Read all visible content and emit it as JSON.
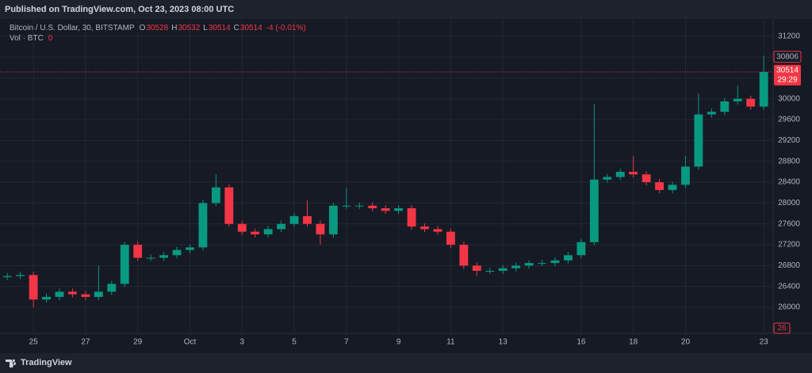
{
  "header": {
    "published": "Published on TradingView.com, Oct 23, 2023 08:00 UTC"
  },
  "footer": {
    "brand": "TradingView"
  },
  "chart_data": {
    "type": "candlestick",
    "title": "Bitcoin / U.S. Dollar, 30, BITSTAMP",
    "ohlc": [
      {
        "label": "O",
        "value": 30528
      },
      {
        "label": "H",
        "value": 30532
      },
      {
        "label": "L",
        "value": 30514
      },
      {
        "label": "C",
        "value": 30514
      }
    ],
    "change": "-4 (-0.01%)",
    "volume_label": "Vol · BTC",
    "volume_value": 0,
    "volume_last": 26,
    "last_price": 30514,
    "countdown": "29:29",
    "high_marker": 30806,
    "up_color": "#089981",
    "down_color": "#f23645",
    "grid": true,
    "x": [
      -1,
      -0.5,
      0,
      0.5,
      1,
      1.5,
      2,
      2.5,
      3,
      3.5,
      4,
      4.5,
      5,
      5.5,
      6,
      6.5,
      7,
      7.5,
      8,
      8.5,
      9,
      9.5,
      10,
      10.5,
      11,
      11.5,
      12,
      12.5,
      13,
      13.5,
      14,
      14.5,
      15,
      15.5,
      16,
      16.5,
      17,
      17.5,
      18,
      18.5,
      19,
      19.5,
      20,
      20.5,
      21,
      21.5,
      22,
      22.5,
      23,
      23.5,
      24,
      24.5,
      25,
      25.5,
      26,
      26.5,
      27,
      27.5,
      28
    ],
    "open": [
      26580,
      26600,
      26620,
      26150,
      26200,
      26300,
      26250,
      26200,
      26300,
      26450,
      27200,
      26950,
      26950,
      27000,
      27100,
      27150,
      28000,
      28300,
      27600,
      27450,
      27400,
      27500,
      27600,
      27750,
      27600,
      27400,
      27950,
      27950,
      27950,
      27900,
      27850,
      27900,
      27550,
      27500,
      27450,
      27200,
      26800,
      26700,
      26700,
      26750,
      26800,
      26850,
      26850,
      26900,
      27000,
      27250,
      28450,
      28500,
      28600,
      28550,
      28400,
      28250,
      28350,
      28700,
      29700,
      29750,
      29950,
      30000,
      29850
    ],
    "high": [
      26660,
      26680,
      26680,
      26260,
      26360,
      26360,
      26310,
      26800,
      26510,
      27260,
      27260,
      27010,
      27060,
      27160,
      27210,
      28060,
      28550,
      28360,
      27660,
      27510,
      27560,
      27660,
      27810,
      28050,
      27660,
      28010,
      28300,
      28010,
      28010,
      27960,
      27960,
      27960,
      27610,
      27560,
      27510,
      27260,
      26860,
      26760,
      26810,
      26860,
      26910,
      26910,
      26960,
      27060,
      27310,
      29900,
      28560,
      28660,
      28900,
      28610,
      28460,
      28410,
      28900,
      30100,
      29810,
      30010,
      30250,
      30060,
      30830
    ],
    "low": [
      26520,
      26540,
      26000,
      26090,
      26140,
      26190,
      26140,
      26140,
      26240,
      26390,
      26890,
      26890,
      26890,
      26940,
      27040,
      27090,
      27940,
      27540,
      27390,
      27340,
      27340,
      27440,
      27540,
      27540,
      27200,
      27340,
      27890,
      27890,
      27840,
      27790,
      27790,
      27490,
      27440,
      27390,
      27140,
      26740,
      26600,
      26640,
      26640,
      26690,
      26740,
      26790,
      26790,
      26840,
      26940,
      27190,
      28390,
      28440,
      28490,
      28340,
      28190,
      28190,
      28290,
      28640,
      29640,
      29690,
      29890,
      29790,
      29790
    ],
    "close": [
      26600,
      26620,
      26150,
      26200,
      26300,
      26250,
      26200,
      26300,
      26450,
      27200,
      26950,
      26950,
      27000,
      27100,
      27150,
      28000,
      28300,
      27600,
      27450,
      27400,
      27500,
      27600,
      27750,
      27600,
      27400,
      27950,
      27950,
      27950,
      27900,
      27850,
      27900,
      27550,
      27500,
      27450,
      27200,
      26800,
      26700,
      26700,
      26750,
      26800,
      26850,
      26850,
      26900,
      27000,
      27250,
      28450,
      28500,
      28600,
      28550,
      28400,
      28250,
      28350,
      28700,
      29700,
      29750,
      29950,
      30000,
      29850,
      30514
    ],
    "xlim": [
      -1.28,
      28.36
    ],
    "xticks": [
      {
        "value": 0,
        "label": "25"
      },
      {
        "value": 2,
        "label": "27"
      },
      {
        "value": 4,
        "label": "29"
      },
      {
        "value": 6,
        "label": "Oct"
      },
      {
        "value": 8,
        "label": "3"
      },
      {
        "value": 10,
        "label": "5"
      },
      {
        "value": 12,
        "label": "7"
      },
      {
        "value": 14,
        "label": "9"
      },
      {
        "value": 16,
        "label": "11"
      },
      {
        "value": 18,
        "label": "13"
      },
      {
        "value": 21,
        "label": "16"
      },
      {
        "value": 23,
        "label": "18"
      },
      {
        "value": 25,
        "label": "20"
      },
      {
        "value": 28,
        "label": "23"
      }
    ],
    "ylim": [
      25500,
      31500
    ],
    "yticks": [
      26000,
      26400,
      26800,
      27200,
      27600,
      28000,
      28400,
      28800,
      29200,
      29600,
      30000,
      30400,
      30800,
      31200
    ]
  }
}
